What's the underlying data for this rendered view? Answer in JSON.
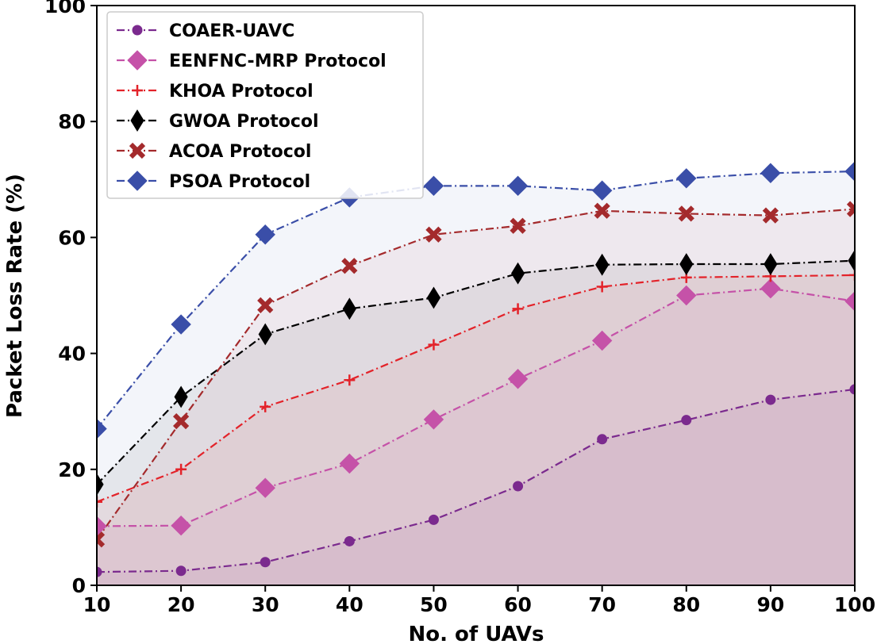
{
  "chart_data": {
    "type": "line",
    "title": "",
    "xlabel": "No. of UAVs",
    "ylabel": "Packet Loss Rate (%)",
    "xlim": [
      10,
      100
    ],
    "ylim": [
      0,
      100
    ],
    "x_ticks": [
      "10",
      "20",
      "30",
      "40",
      "50",
      "60",
      "70",
      "80",
      "90",
      "100"
    ],
    "y_ticks": [
      "0",
      "20",
      "40",
      "60",
      "80",
      "100"
    ],
    "x": [
      10,
      20,
      30,
      40,
      50,
      60,
      70,
      80,
      90,
      100
    ],
    "grid": false,
    "legend_position": "top-left",
    "series": [
      {
        "name": "COAER-UAVC",
        "color": "#7b2a8e",
        "marker": "circle",
        "values": [
          2.3,
          2.5,
          4.0,
          7.6,
          11.3,
          17.1,
          25.2,
          28.5,
          32.0,
          33.8
        ]
      },
      {
        "name": "EENFNC-MRP Protocol",
        "color": "#c552a8",
        "marker": "diamond",
        "values": [
          10.2,
          10.3,
          16.8,
          21.0,
          28.6,
          35.6,
          42.2,
          50.0,
          51.2,
          49.0
        ]
      },
      {
        "name": "KHOA Protocol",
        "color": "#e3232a",
        "marker": "plus",
        "values": [
          14.4,
          20.0,
          30.8,
          35.4,
          41.5,
          47.7,
          51.5,
          53.1,
          53.3,
          53.5
        ]
      },
      {
        "name": "GWOA Protocol",
        "color": "#000000",
        "marker": "thin_diamond",
        "values": [
          17.4,
          32.5,
          43.3,
          47.7,
          49.6,
          53.8,
          55.3,
          55.4,
          55.4,
          56.0
        ]
      },
      {
        "name": "ACOA Protocol",
        "color": "#a42a2c",
        "marker": "x",
        "values": [
          7.9,
          28.3,
          48.3,
          55.1,
          60.5,
          62.0,
          64.6,
          64.1,
          63.8,
          64.9
        ]
      },
      {
        "name": "PSOA Protocol",
        "color": "#3a4ea8",
        "marker": "diamond",
        "values": [
          27.0,
          45.0,
          60.5,
          66.9,
          68.9,
          68.9,
          68.1,
          70.2,
          71.1,
          71.4
        ]
      }
    ]
  }
}
